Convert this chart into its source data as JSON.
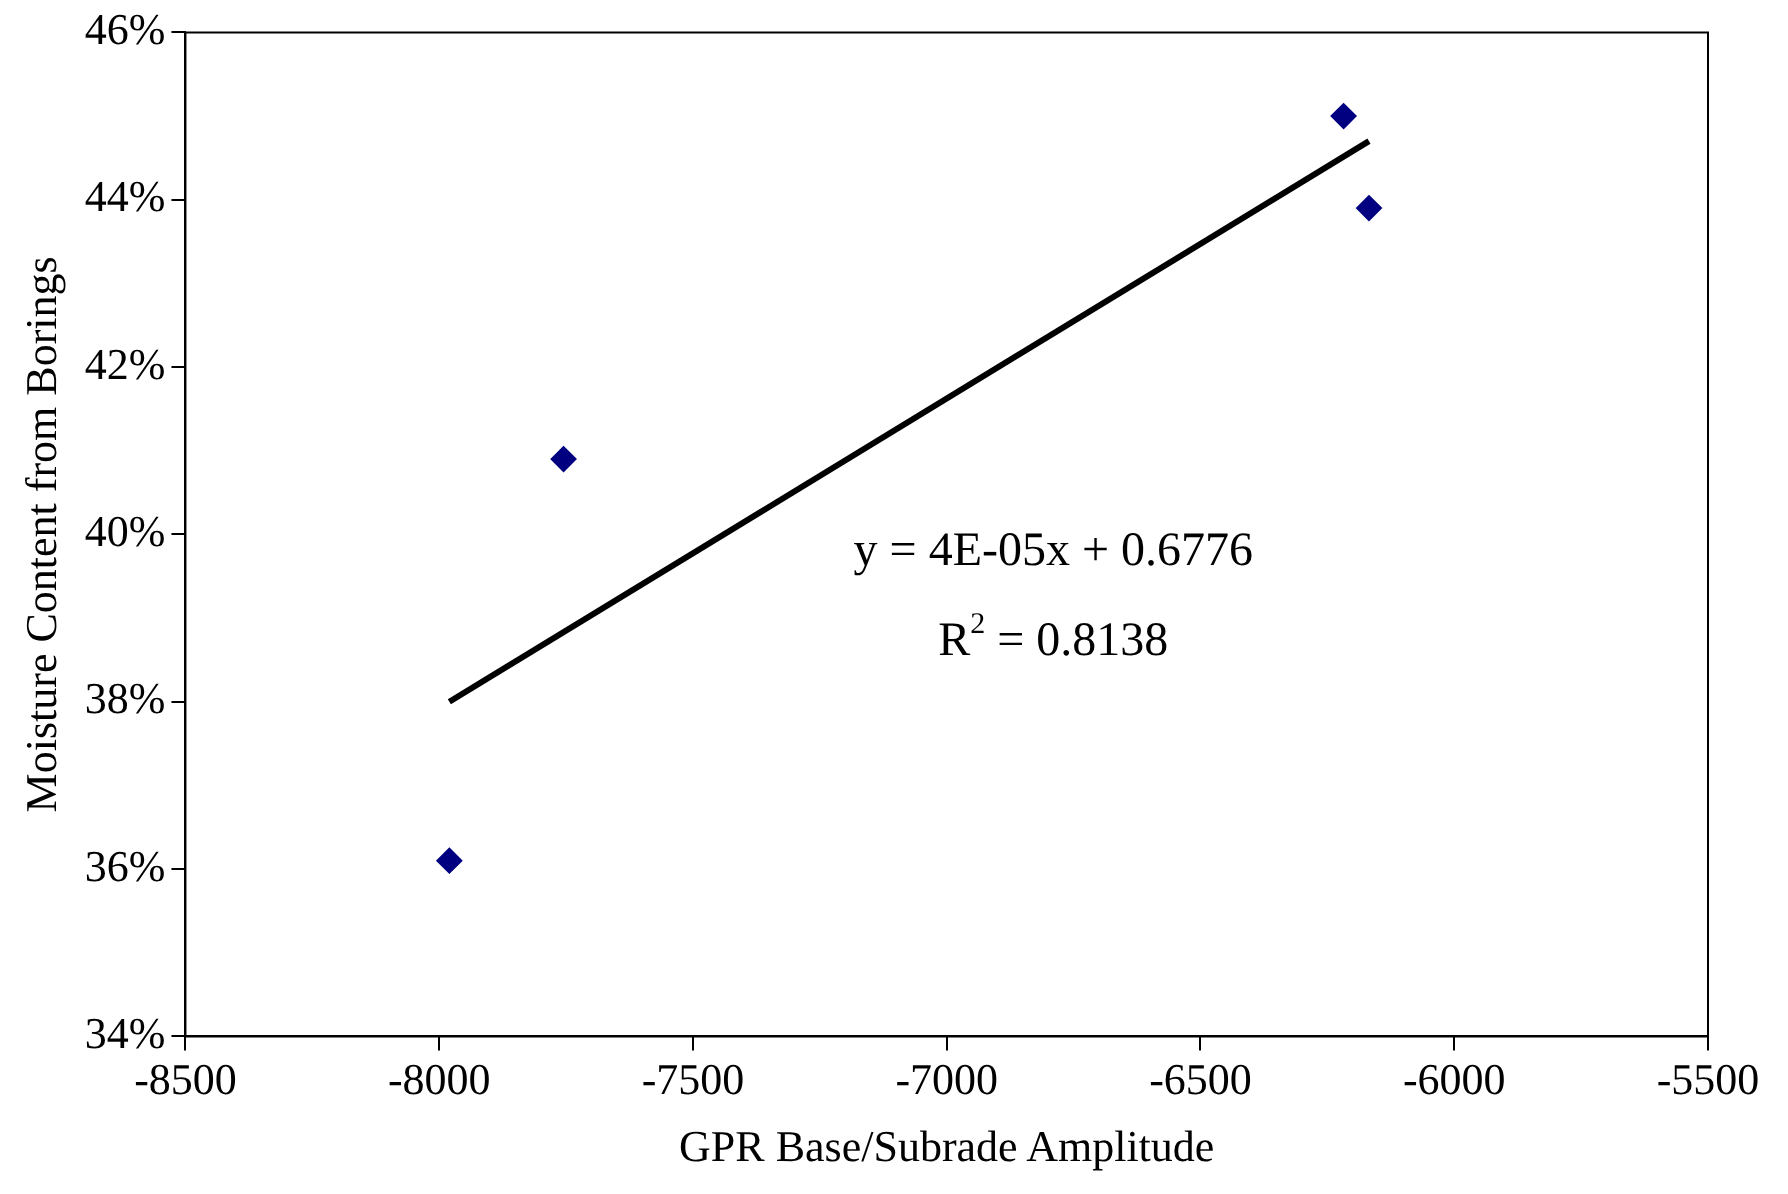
{
  "chart_data": {
    "type": "scatter",
    "xlabel": "GPR Base/Subrade Amplitude",
    "ylabel": "Moisture Content from Borings",
    "xlim": [
      -8500,
      -5500
    ],
    "xticks": [
      -8500,
      -8000,
      -7500,
      -7000,
      -6500,
      -6000,
      -5500
    ],
    "ylim": [
      34,
      46
    ],
    "yticks": [
      {
        "value": 34,
        "label": "34%"
      },
      {
        "value": 36,
        "label": "36%"
      },
      {
        "value": 38,
        "label": "38%"
      },
      {
        "value": 40,
        "label": "40%"
      },
      {
        "value": 42,
        "label": "42%"
      },
      {
        "value": 44,
        "label": "44%"
      },
      {
        "value": 46,
        "label": "46%"
      }
    ],
    "grid": false,
    "legend": false,
    "marker": "diamond",
    "series": [
      {
        "type": "scatter",
        "color": "#000080",
        "x": [
          -7980,
          -7755,
          -6218,
          -6168
        ],
        "values": [
          36.1,
          40.9,
          45.0,
          43.9
        ]
      },
      {
        "type": "line",
        "color": "#000000",
        "marker": "none",
        "x": [
          -7980,
          -6168
        ],
        "values": [
          38.0,
          44.7
        ]
      }
    ],
    "annotations": [
      "y = 4E-05x + 0.6776",
      "R$^{2}$ = 0.8138"
    ]
  }
}
